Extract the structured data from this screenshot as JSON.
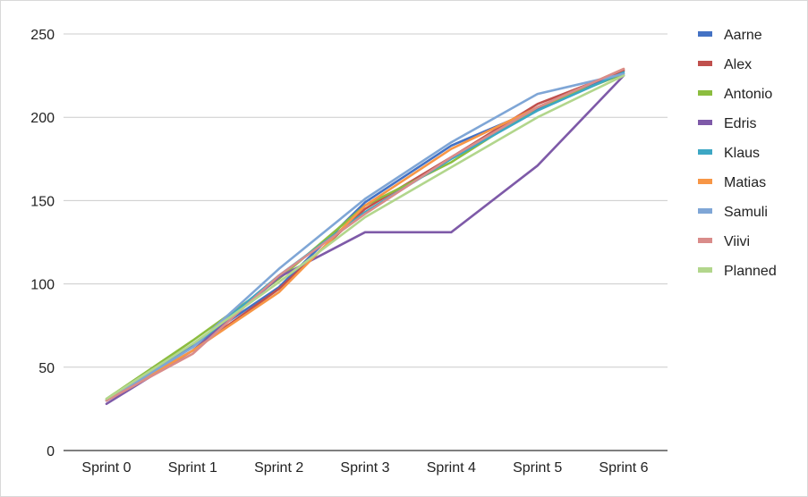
{
  "chart_data": {
    "type": "line",
    "title": "",
    "xlabel": "",
    "ylabel": "",
    "categories": [
      "Sprint 0",
      "Sprint 1",
      "Sprint 2",
      "Sprint 3",
      "Sprint 4",
      "Sprint 5",
      "Sprint 6"
    ],
    "y_ticks": [
      0,
      50,
      100,
      150,
      200,
      250
    ],
    "ylim": [
      0,
      250
    ],
    "grid": true,
    "legend_position": "right",
    "series": [
      {
        "name": "Aarne",
        "color": "#4472c4",
        "values": [
          30,
          63,
          98,
          149,
          183,
          205,
          228
        ]
      },
      {
        "name": "Alex",
        "color": "#c0504d",
        "values": [
          30,
          60,
          97,
          145,
          176,
          208,
          228
        ]
      },
      {
        "name": "Antonio",
        "color": "#8cbd3f",
        "values": [
          31,
          66,
          103,
          147,
          173,
          206,
          226
        ]
      },
      {
        "name": "Edris",
        "color": "#7e5aa8",
        "values": [
          28,
          60,
          104,
          131,
          131,
          171,
          225
        ]
      },
      {
        "name": "Klaus",
        "color": "#3da7c4",
        "values": [
          30,
          62,
          105,
          143,
          175,
          204,
          227
        ]
      },
      {
        "name": "Matias",
        "color": "#f79646",
        "values": [
          30,
          60,
          95,
          147,
          181,
          206,
          229
        ]
      },
      {
        "name": "Samuli",
        "color": "#7fa6d6",
        "values": [
          30,
          62,
          109,
          151,
          185,
          214,
          226
        ]
      },
      {
        "name": "Viivi",
        "color": "#d98c8a",
        "values": [
          30,
          58,
          105,
          142,
          176,
          206,
          229
        ]
      },
      {
        "name": "Planned",
        "color": "#b2d68c",
        "values": [
          31,
          64,
          101,
          140,
          170,
          200,
          225
        ]
      }
    ]
  }
}
